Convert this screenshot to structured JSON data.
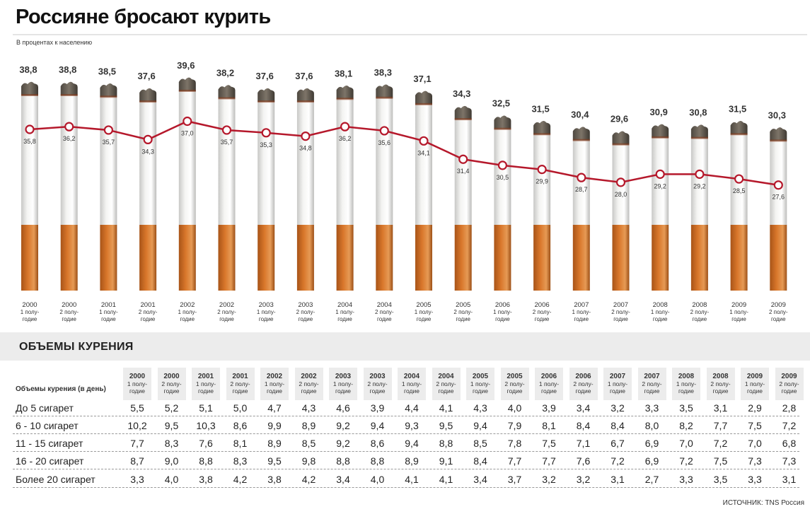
{
  "header": {
    "title": "Россияне бросают курить",
    "subtitle": "В процентах к населению"
  },
  "chart_data": {
    "type": "line",
    "periods": [
      {
        "year": "2000",
        "half": "1 полу-\nгодие"
      },
      {
        "year": "2000",
        "half": "2 полу-\nгодие"
      },
      {
        "year": "2001",
        "half": "1 полу-\nгодие"
      },
      {
        "year": "2001",
        "half": "2 полу-\nгодие"
      },
      {
        "year": "2002",
        "half": "1 полу-\nгодие"
      },
      {
        "year": "2002",
        "half": "2 полу-\nгодие"
      },
      {
        "year": "2003",
        "half": "1 полу-\nгодие"
      },
      {
        "year": "2003",
        "half": "2 полу-\nгодие"
      },
      {
        "year": "2004",
        "half": "1 полу-\nгодие"
      },
      {
        "year": "2004",
        "half": "2 полу-\nгодие"
      },
      {
        "year": "2005",
        "half": "1 полу-\nгодие"
      },
      {
        "year": "2005",
        "half": "2 полу-\nгодие"
      },
      {
        "year": "2006",
        "half": "1 полу-\nгодие"
      },
      {
        "year": "2006",
        "half": "2 полу-\nгодие"
      },
      {
        "year": "2007",
        "half": "1 полу-\nгодие"
      },
      {
        "year": "2007",
        "half": "2 полу-\nгодие"
      },
      {
        "year": "2008",
        "half": "1 полу-\nгодие"
      },
      {
        "year": "2008",
        "half": "2 полу-\nгодие"
      },
      {
        "year": "2009",
        "half": "1 полу-\nгодие"
      },
      {
        "year": "2009",
        "half": "2 полу-\nгодие"
      }
    ],
    "series": [
      {
        "values": [
          38.8,
          38.8,
          38.5,
          37.6,
          39.6,
          38.2,
          37.6,
          37.6,
          38.1,
          38.3,
          37.1,
          34.3,
          32.5,
          31.5,
          30.4,
          29.6,
          30.9,
          30.8,
          31.5,
          30.3
        ]
      },
      {
        "values": [
          35.8,
          36.2,
          35.7,
          34.3,
          37.0,
          35.7,
          35.3,
          34.8,
          36.2,
          35.6,
          34.1,
          31.4,
          30.5,
          29.9,
          28.7,
          28.0,
          29.2,
          29.2,
          28.5,
          27.6
        ]
      }
    ],
    "colors": {
      "line": "#b5182b",
      "filter": "#d9772b",
      "paper": "#f4f4f2",
      "ash": "#7d7468"
    }
  },
  "table": {
    "section_title": "ОБЪЕМЫ КУРЕНИЯ",
    "header_label": "Объемы курения (в день)",
    "columns": [
      {
        "year": "2000",
        "half": "1 полу-\nгодие"
      },
      {
        "year": "2000",
        "half": "2 полу-\nгодие"
      },
      {
        "year": "2001",
        "half": "1 полу-\nгодие"
      },
      {
        "year": "2001",
        "half": "2 полу-\nгодие"
      },
      {
        "year": "2002",
        "half": "1 полу-\nгодие"
      },
      {
        "year": "2002",
        "half": "2 полу-\nгодие"
      },
      {
        "year": "2003",
        "half": "1 полу-\nгодие"
      },
      {
        "year": "2003",
        "half": "2 полу-\nгодие"
      },
      {
        "year": "2004",
        "half": "1 полу-\nгодие"
      },
      {
        "year": "2004",
        "half": "2 полу-\nгодие"
      },
      {
        "year": "2005",
        "half": "1 полу-\nгодие"
      },
      {
        "year": "2005",
        "half": "2 полу-\nгодие"
      },
      {
        "year": "2006",
        "half": "1 полу-\nгодие"
      },
      {
        "year": "2006",
        "half": "2 полу-\nгодие"
      },
      {
        "year": "2007",
        "half": "1 полу-\nгодие"
      },
      {
        "year": "2007",
        "half": "2 полу-\nгодие"
      },
      {
        "year": "2008",
        "half": "1 полу-\nгодие"
      },
      {
        "year": "2008",
        "half": "2 полу-\nгодие"
      },
      {
        "year": "2009",
        "half": "1 полу-\nгодие"
      },
      {
        "year": "2009",
        "half": "2 полу-\nгодие"
      }
    ],
    "rows": [
      {
        "label": "До 5 сигарет",
        "values": [
          "5,5",
          "5,2",
          "5,1",
          "5,0",
          "4,7",
          "4,3",
          "4,6",
          "3,9",
          "4,4",
          "4,1",
          "4,3",
          "4,0",
          "3,9",
          "3,4",
          "3,2",
          "3,3",
          "3,5",
          "3,1",
          "2,9",
          "2,8"
        ]
      },
      {
        "label": "6 - 10 сигарет",
        "values": [
          "10,2",
          "9,5",
          "10,3",
          "8,6",
          "9,9",
          "8,9",
          "9,2",
          "9,4",
          "9,3",
          "9,5",
          "9,4",
          "7,9",
          "8,1",
          "8,4",
          "8,4",
          "8,0",
          "8,2",
          "7,7",
          "7,5",
          "7,2"
        ]
      },
      {
        "label": "11 - 15 сигарет",
        "values": [
          "7,7",
          "8,3",
          "7,6",
          "8,1",
          "8,9",
          "8,5",
          "9,2",
          "8,6",
          "9,4",
          "8,8",
          "8,5",
          "7,8",
          "7,5",
          "7,1",
          "6,7",
          "6,9",
          "7,0",
          "7,2",
          "7,0",
          "6,8"
        ]
      },
      {
        "label": "16 - 20 сигарет",
        "values": [
          "8,7",
          "9,0",
          "8,8",
          "8,3",
          "9,5",
          "9,8",
          "8,8",
          "8,8",
          "8,9",
          "9,1",
          "8,4",
          "7,7",
          "7,7",
          "7,6",
          "7,2",
          "6,9",
          "7,2",
          "7,5",
          "7,3",
          "7,3"
        ]
      },
      {
        "label": "Более 20 сигарет",
        "values": [
          "3,3",
          "4,0",
          "3,8",
          "4,2",
          "3,8",
          "4,2",
          "3,4",
          "4,0",
          "4,1",
          "4,1",
          "3,4",
          "3,7",
          "3,2",
          "3,2",
          "3,1",
          "2,7",
          "3,3",
          "3,5",
          "3,3",
          "3,1"
        ]
      }
    ]
  },
  "footer": {
    "source": "ИСТОЧНИК: TNS Россия"
  }
}
